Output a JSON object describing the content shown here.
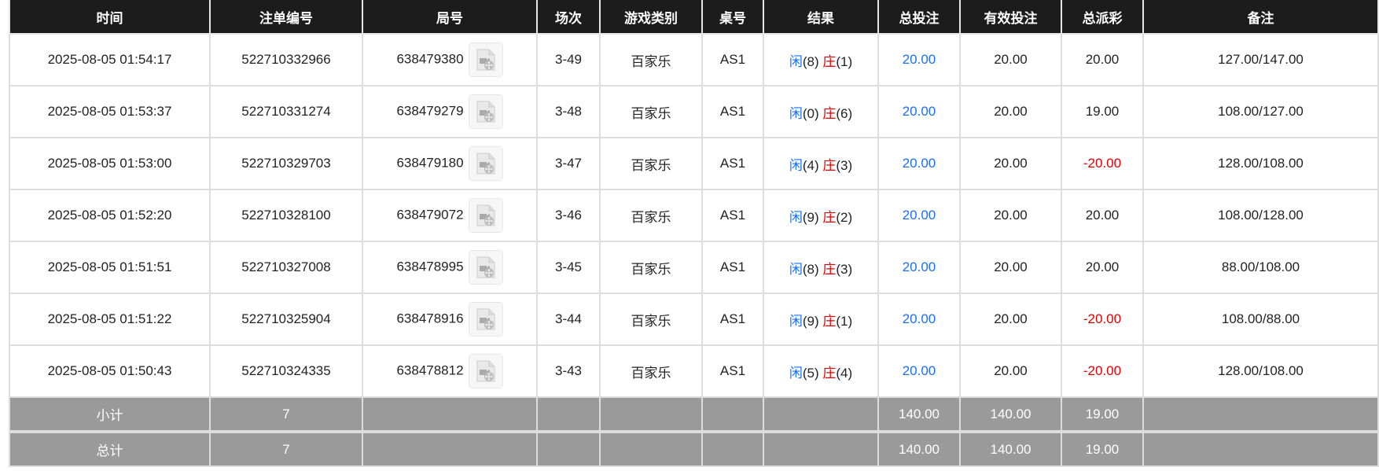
{
  "headers": [
    "时间",
    "注单编号",
    "局号",
    "场次",
    "游戏类别",
    "桌号",
    "结果",
    "总投注",
    "有效投注",
    "总派彩",
    "备注"
  ],
  "rows": [
    {
      "time": "2025-08-05 01:54:17",
      "bet_id": "522710332966",
      "round": "638479380",
      "session": "3-49",
      "game": "百家乐",
      "table": "AS1",
      "player_label": "闲",
      "player": "(8)",
      "banker_label": "庄",
      "banker": "(1)",
      "total_bet": "20.00",
      "valid_bet": "20.00",
      "payout": "20.00",
      "payout_negative": false,
      "note": "127.00/147.00"
    },
    {
      "time": "2025-08-05 01:53:37",
      "bet_id": "522710331274",
      "round": "638479279",
      "session": "3-48",
      "game": "百家乐",
      "table": "AS1",
      "player_label": "闲",
      "player": "(0)",
      "banker_label": "庄",
      "banker": "(6)",
      "total_bet": "20.00",
      "valid_bet": "20.00",
      "payout": "19.00",
      "payout_negative": false,
      "note": "108.00/127.00"
    },
    {
      "time": "2025-08-05 01:53:00",
      "bet_id": "522710329703",
      "round": "638479180",
      "session": "3-47",
      "game": "百家乐",
      "table": "AS1",
      "player_label": "闲",
      "player": "(4)",
      "banker_label": "庄",
      "banker": "(3)",
      "total_bet": "20.00",
      "valid_bet": "20.00",
      "payout": "-20.00",
      "payout_negative": true,
      "note": "128.00/108.00"
    },
    {
      "time": "2025-08-05 01:52:20",
      "bet_id": "522710328100",
      "round": "638479072",
      "session": "3-46",
      "game": "百家乐",
      "table": "AS1",
      "player_label": "闲",
      "player": "(9)",
      "banker_label": "庄",
      "banker": "(2)",
      "total_bet": "20.00",
      "valid_bet": "20.00",
      "payout": "20.00",
      "payout_negative": false,
      "note": "108.00/128.00"
    },
    {
      "time": "2025-08-05 01:51:51",
      "bet_id": "522710327008",
      "round": "638478995",
      "session": "3-45",
      "game": "百家乐",
      "table": "AS1",
      "player_label": "闲",
      "player": "(8)",
      "banker_label": "庄",
      "banker": "(3)",
      "total_bet": "20.00",
      "valid_bet": "20.00",
      "payout": "20.00",
      "payout_negative": false,
      "note": "88.00/108.00"
    },
    {
      "time": "2025-08-05 01:51:22",
      "bet_id": "522710325904",
      "round": "638478916",
      "session": "3-44",
      "game": "百家乐",
      "table": "AS1",
      "player_label": "闲",
      "player": "(9)",
      "banker_label": "庄",
      "banker": "(1)",
      "total_bet": "20.00",
      "valid_bet": "20.00",
      "payout": "-20.00",
      "payout_negative": true,
      "note": "108.00/88.00"
    },
    {
      "time": "2025-08-05 01:50:43",
      "bet_id": "522710324335",
      "round": "638478812",
      "session": "3-43",
      "game": "百家乐",
      "table": "AS1",
      "player_label": "闲",
      "player": "(5)",
      "banker_label": "庄",
      "banker": "(4)",
      "total_bet": "20.00",
      "valid_bet": "20.00",
      "payout": "-20.00",
      "payout_negative": true,
      "note": "128.00/108.00"
    }
  ],
  "subtotal": {
    "label": "小计",
    "count": "7",
    "total_bet": "140.00",
    "valid_bet": "140.00",
    "payout": "19.00"
  },
  "total": {
    "label": "总计",
    "count": "7",
    "total_bet": "140.00",
    "valid_bet": "140.00",
    "payout": "19.00"
  },
  "icons": {
    "replay": "video-file-icon"
  },
  "colors": {
    "player": "#1a6ff0",
    "banker": "#e00000",
    "negative": "#e00000",
    "header_bg": "#1c1c1c",
    "summary_bg": "#9a9a9a"
  }
}
